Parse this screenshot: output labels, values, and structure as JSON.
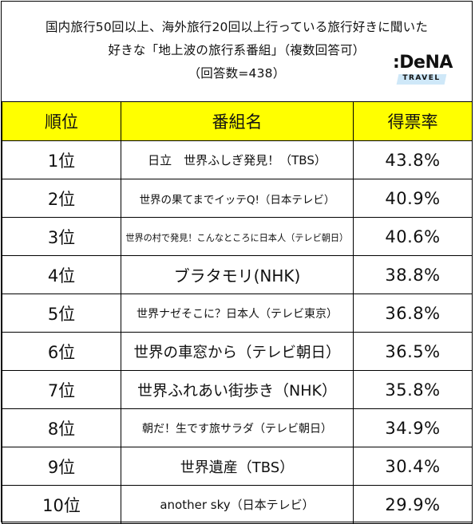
{
  "header": {
    "title_line1": "国内旅行50回以上、海外旅行20回以上行っている旅行好きに聞いた",
    "title_line2": "好きな「地上波の旅行系番組」（複数回答可）",
    "title_line3": "（回答数=438）",
    "logo_text": ":DeNA",
    "logo_sub": "TRAVEL"
  },
  "table": {
    "col_rank": "順位",
    "col_program": "番組名",
    "col_rate": "得票率"
  },
  "chart_data": {
    "type": "table",
    "columns": [
      "順位",
      "番組名",
      "得票率"
    ],
    "rows": [
      {
        "rank": "1位",
        "program": "日立　世界ふしぎ発見！（TBS）",
        "rate": "43.8%",
        "value": 43.8
      },
      {
        "rank": "2位",
        "program": "世界の果てまでイッテQ!（日本テレビ）",
        "rate": "40.9%",
        "value": 40.9
      },
      {
        "rank": "3位",
        "program": "世界の村で発見！こんなところに日本人（テレビ朝日）",
        "rate": "40.6%",
        "value": 40.6
      },
      {
        "rank": "4位",
        "program": "ブラタモリ(NHK)",
        "rate": "38.8%",
        "value": 38.8
      },
      {
        "rank": "5位",
        "program": "世界ナゼそこに？日本人（テレビ東京）",
        "rate": "36.8%",
        "value": 36.8
      },
      {
        "rank": "6位",
        "program": "世界の車窓から（テレビ朝日）",
        "rate": "36.5%",
        "value": 36.5
      },
      {
        "rank": "7位",
        "program": "世界ふれあい街歩き（NHK）",
        "rate": "35.8%",
        "value": 35.8
      },
      {
        "rank": "8位",
        "program": "朝だ！生です旅サラダ（テレビ朝日）",
        "rate": "34.9%",
        "value": 34.9
      },
      {
        "rank": "9位",
        "program": "世界遺産（TBS）",
        "rate": "30.4%",
        "value": 30.4
      },
      {
        "rank": "10位",
        "program": "another sky（日本テレビ）",
        "rate": "29.9%",
        "value": 29.9
      }
    ]
  }
}
